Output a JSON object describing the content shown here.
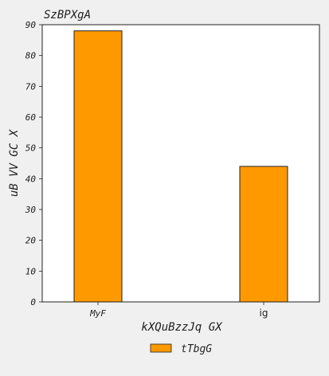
{
  "chart_data": {
    "type": "bar",
    "title": "SzBPXgA",
    "xlabel": "kXQuBzzJq GX",
    "ylabel": "uB VV GC  X",
    "categories": [
      "MyF",
      "ig"
    ],
    "series": [
      {
        "name": "tTbgG",
        "values": [
          88,
          44
        ]
      }
    ],
    "ylim": [
      0,
      90
    ],
    "yticks": [
      0,
      10,
      20,
      30,
      40,
      50,
      60,
      70,
      80,
      90
    ],
    "bar_color": "#ff9900",
    "bar_edge_color": "#222222",
    "grid": false,
    "legend_position": "bottom-center"
  }
}
